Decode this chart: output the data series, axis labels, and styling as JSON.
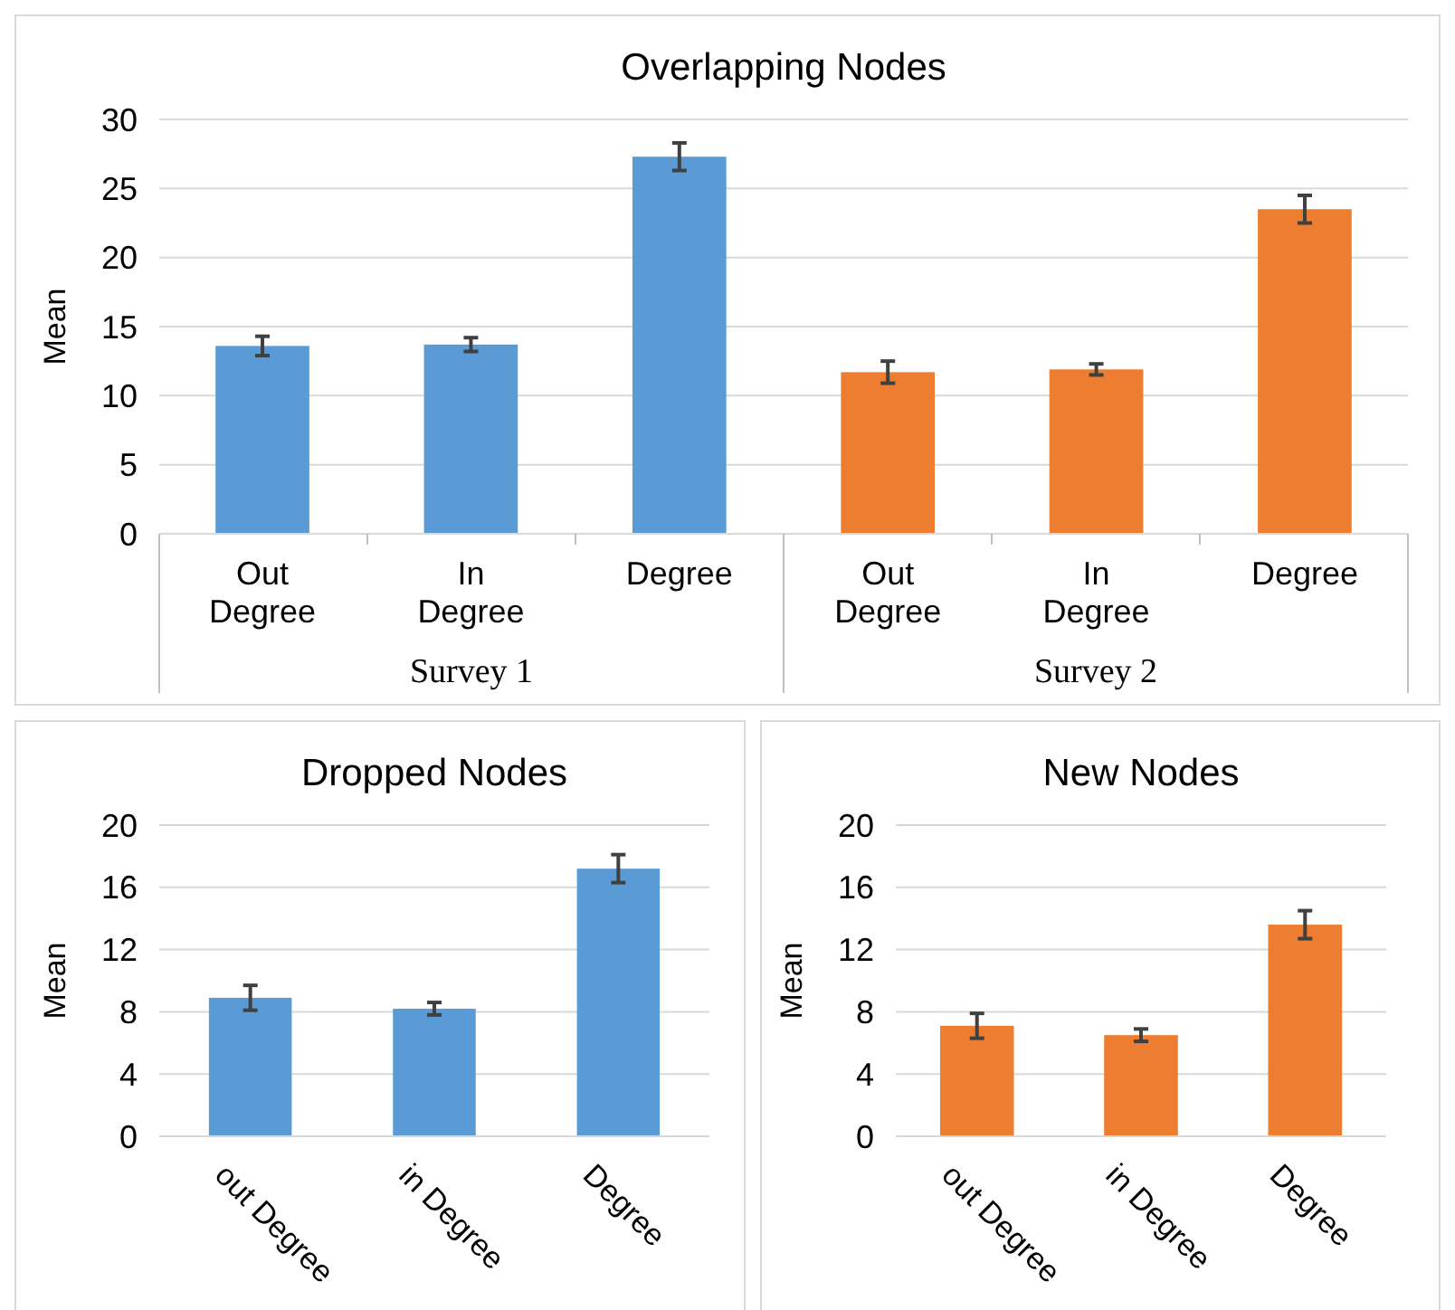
{
  "chart_data": [
    {
      "type": "bar",
      "title": "Overlapping Nodes",
      "ylabel": "Mean",
      "categories": [
        "Out Degree",
        "In Degree",
        "Degree",
        "Out Degree",
        "In Degree",
        "Degree"
      ],
      "values": [
        13.6,
        13.7,
        27.3,
        11.7,
        11.9,
        23.5
      ],
      "errors": [
        0.7,
        0.5,
        1.0,
        0.8,
        0.4,
        1.0
      ],
      "colors": [
        "#5b9bd5",
        "#5b9bd5",
        "#5b9bd5",
        "#ed7d31",
        "#ed7d31",
        "#ed7d31"
      ],
      "ylim": [
        0,
        30
      ],
      "yticks": [
        0,
        5,
        10,
        15,
        20,
        25,
        30
      ],
      "grid": "y",
      "annotations": [
        "Survey 1",
        "Survey 2"
      ]
    },
    {
      "type": "bar",
      "title": "Dropped Nodes",
      "ylabel": "Mean",
      "categories": [
        "out Degree",
        "in Degree",
        "Degree"
      ],
      "values": [
        8.9,
        8.2,
        17.2
      ],
      "errors": [
        0.8,
        0.4,
        0.9
      ],
      "color": "#5b9bd5",
      "ylim": [
        0,
        20
      ],
      "yticks": [
        0,
        4,
        8,
        12,
        16,
        20
      ],
      "grid": "y"
    },
    {
      "type": "bar",
      "title": "New Nodes",
      "ylabel": "Mean",
      "categories": [
        "out Degree",
        "in Degree",
        "Degree"
      ],
      "values": [
        7.1,
        6.5,
        13.6
      ],
      "errors": [
        0.8,
        0.4,
        0.9
      ],
      "color": "#ed7d31",
      "ylim": [
        0,
        20
      ],
      "yticks": [
        0,
        4,
        8,
        12,
        16,
        20
      ],
      "grid": "y"
    }
  ]
}
